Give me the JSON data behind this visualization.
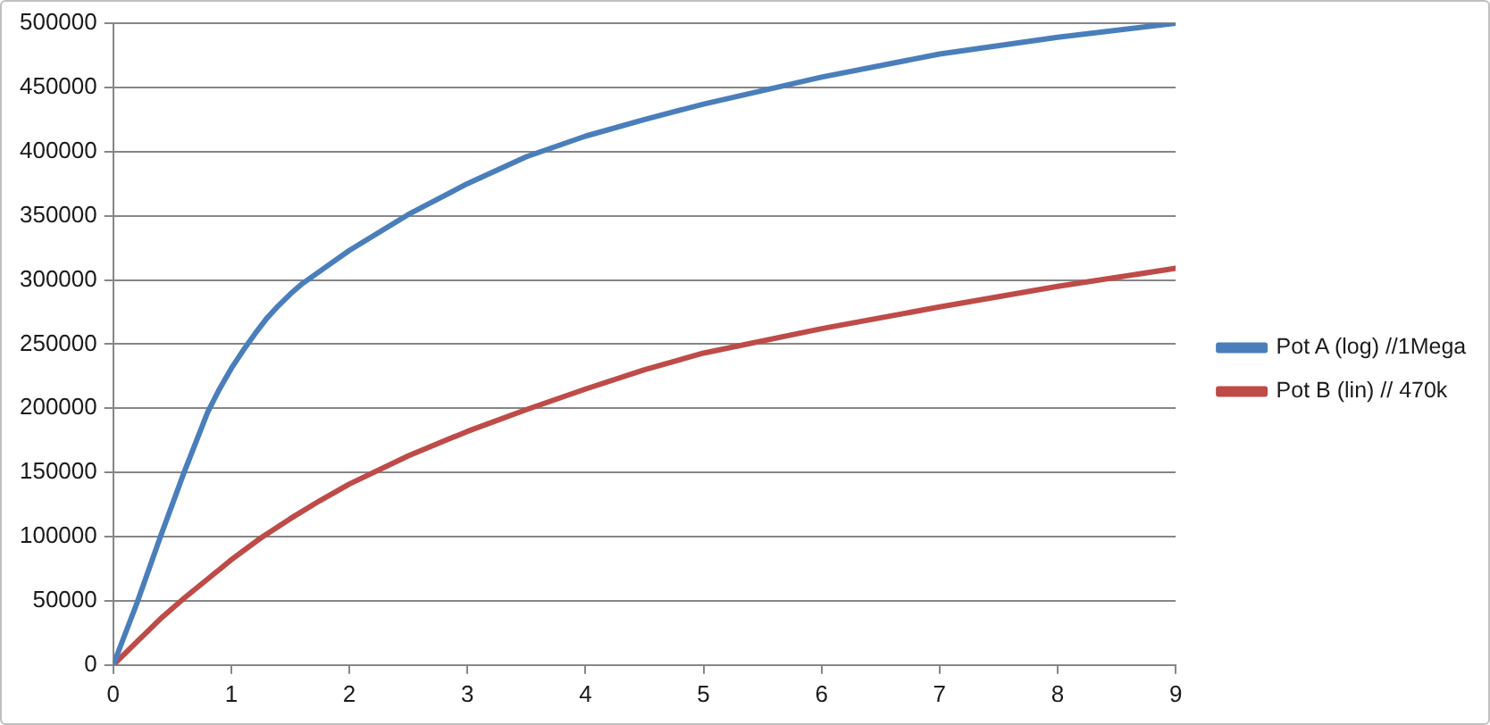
{
  "chart_data": {
    "type": "line",
    "series": [
      {
        "name": "Pot A (log) //1Mega",
        "color": "#4a7ebb",
        "x": [
          0,
          0.2,
          0.4,
          0.6,
          0.8,
          0.9,
          1,
          1.1,
          1.2,
          1.3,
          1.4,
          1.5,
          1.6,
          1.8,
          2,
          2.5,
          3,
          3.5,
          4,
          4.5,
          5,
          6,
          7,
          8,
          9
        ],
        "values": [
          0,
          48000,
          100000,
          150000,
          197000,
          215000,
          231000,
          245000,
          258000,
          270000,
          280000,
          289000,
          297000,
          310000,
          323000,
          351000,
          375000,
          396000,
          412000,
          425000,
          437000,
          458000,
          476000,
          489000,
          500000
        ]
      },
      {
        "name": "Pot B (lin) // 470k",
        "color": "#be4b48",
        "x": [
          0,
          0.2,
          0.4,
          0.6,
          0.8,
          1,
          1.25,
          1.5,
          1.75,
          2,
          2.5,
          3,
          3.5,
          4,
          4.5,
          5,
          6,
          7,
          8,
          9
        ],
        "values": [
          0,
          18000,
          36000,
          52000,
          67000,
          82000,
          99000,
          114000,
          128000,
          141000,
          163000,
          182000,
          199000,
          215000,
          230000,
          243000,
          262000,
          279000,
          295000,
          309000
        ]
      }
    ],
    "xlim": [
      0,
      9
    ],
    "xticks": [
      0,
      1,
      2,
      3,
      4,
      5,
      6,
      7,
      8,
      9
    ],
    "ylim": [
      0,
      500000
    ],
    "yticks": [
      0,
      50000,
      100000,
      150000,
      200000,
      250000,
      300000,
      350000,
      400000,
      450000,
      500000
    ],
    "grid": "y",
    "legend": "right",
    "marker": "none",
    "line_style": "solid"
  }
}
